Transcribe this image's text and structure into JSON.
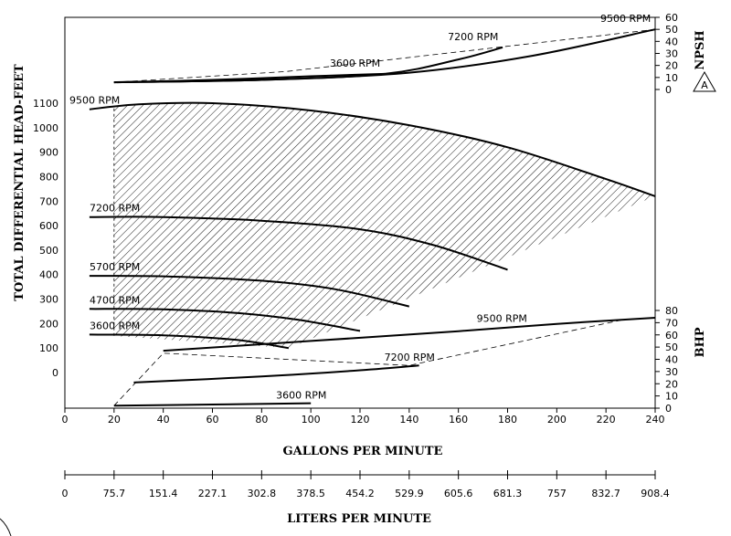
{
  "chart_data": {
    "type": "line",
    "xlabel": "GALLONS PER MINUTE",
    "x2label": "LITERS PER MINUTE",
    "ylabel": "TOTAL DIFFERENTIAL HEAD-FEET",
    "npsh_label": "NPSH",
    "bhp_label": "BHP",
    "badge": "A",
    "x_ticks": [
      "0",
      "20",
      "40",
      "60",
      "80",
      "100",
      "120",
      "140",
      "160",
      "180",
      "200",
      "220",
      "240"
    ],
    "lpm_ticks": [
      "0",
      "75.7",
      "151.4",
      "227.1",
      "302.8",
      "378.5",
      "454.2",
      "529.9",
      "605.6",
      "681.3",
      "757",
      "832.7",
      "908.4"
    ],
    "head_ticks": [
      "0",
      "100",
      "200",
      "300",
      "400",
      "500",
      "600",
      "700",
      "800",
      "900",
      "1000",
      "1100"
    ],
    "npsh_ticks": [
      "0",
      "10",
      "20",
      "30",
      "40",
      "50",
      "60"
    ],
    "bhp_ticks": [
      "0",
      "10",
      "20",
      "30",
      "40",
      "50",
      "60",
      "70",
      "80"
    ],
    "xlim": [
      0,
      240
    ],
    "head_ylim": [
      0,
      1100
    ],
    "npsh_ylim": [
      0,
      60
    ],
    "bhp_ylim": [
      0,
      80
    ],
    "head_curves": [
      {
        "name": "9500 RPM",
        "x": [
          10,
          30,
          60,
          100,
          140,
          180,
          220,
          240
        ],
        "y": [
          1075,
          1095,
          1100,
          1070,
          1010,
          920,
          790,
          720
        ]
      },
      {
        "name": "7200 RPM",
        "x": [
          10,
          40,
          80,
          120,
          150,
          180
        ],
        "y": [
          635,
          635,
          620,
          585,
          520,
          420
        ]
      },
      {
        "name": "5700 RPM",
        "x": [
          10,
          40,
          80,
          110,
          140
        ],
        "y": [
          395,
          393,
          375,
          340,
          270
        ]
      },
      {
        "name": "4700 RPM",
        "x": [
          10,
          40,
          70,
          95,
          120
        ],
        "y": [
          260,
          258,
          243,
          215,
          170
        ]
      },
      {
        "name": "3600 RPM",
        "x": [
          10,
          40,
          70,
          91
        ],
        "y": [
          155,
          152,
          133,
          100
        ]
      }
    ],
    "npsh_curves": [
      {
        "name": "3600 RPM",
        "x": [
          20,
          60,
          100,
          130
        ],
        "y": [
          6,
          8,
          11,
          13
        ]
      },
      {
        "name": "7200 RPM",
        "x": [
          20,
          80,
          130,
          160,
          178
        ],
        "y": [
          6,
          8,
          13,
          25,
          35
        ]
      },
      {
        "name": "9500 RPM",
        "x": [
          20,
          80,
          140,
          190,
          240
        ],
        "y": [
          6,
          8,
          14,
          28,
          50
        ]
      }
    ],
    "npsh_dashed": {
      "x": [
        20,
        90,
        240
      ],
      "y": [
        6,
        15,
        50
      ]
    },
    "bhp_curves": [
      {
        "name": "9500 RPM",
        "x": [
          40,
          100,
          160,
          200,
          240
        ],
        "y": [
          47,
          55,
          63,
          69,
          74
        ]
      },
      {
        "name": "7200 RPM",
        "x": [
          28,
          80,
          120,
          144
        ],
        "y": [
          21,
          26,
          31,
          35
        ]
      },
      {
        "name": "3600 RPM",
        "x": [
          20,
          60,
          100
        ],
        "y": [
          2,
          3,
          4
        ]
      }
    ],
    "bhp_dashed": {
      "x": [
        20,
        40,
        140,
        226
      ],
      "y": [
        2,
        45,
        35,
        72
      ]
    }
  }
}
